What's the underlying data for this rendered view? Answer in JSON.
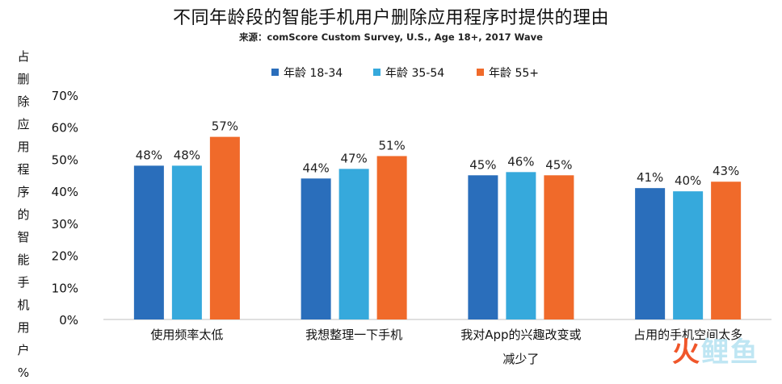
{
  "title": "不同年龄段的智能手机用户删除应用程序时提供的理由",
  "source": "来源：comScore Custom Survey, U.S., Age 18+, 2017 Wave",
  "watermark": [
    "火",
    "鲤",
    "鱼"
  ],
  "chart_data": {
    "type": "bar",
    "title": "不同年龄段的智能手机用户删除应用程序时提供的理由",
    "ylabel": "占删除应用程序的智能手机用户%",
    "xlabel": "",
    "ylim": [
      0,
      70
    ],
    "yticks": [
      "0%",
      "10%",
      "20%",
      "30%",
      "40%",
      "50%",
      "60%",
      "70%"
    ],
    "ytick_values": [
      0,
      10,
      20,
      30,
      40,
      50,
      60,
      70
    ],
    "legend_position": "top-center",
    "grid": false,
    "categories": [
      [
        "使用频率太低"
      ],
      [
        "我想整理一下手机"
      ],
      [
        "我对App的兴趣改变或",
        "减少了"
      ],
      [
        "占用的手机空间太多"
      ]
    ],
    "series": [
      {
        "name": "年龄 18-34",
        "color": "#2a6ebb",
        "values": [
          48,
          44,
          45,
          41
        ],
        "labels": [
          "48%",
          "44%",
          "45%",
          "41%"
        ]
      },
      {
        "name": "年龄 35-54",
        "color": "#36a9dc",
        "values": [
          48,
          47,
          46,
          40
        ],
        "labels": [
          "48%",
          "47%",
          "46%",
          "40%"
        ]
      },
      {
        "name": "年龄 55+",
        "color": "#f06a2a",
        "values": [
          57,
          51,
          45,
          43
        ],
        "labels": [
          "57%",
          "51%",
          "45%",
          "43%"
        ]
      }
    ]
  }
}
